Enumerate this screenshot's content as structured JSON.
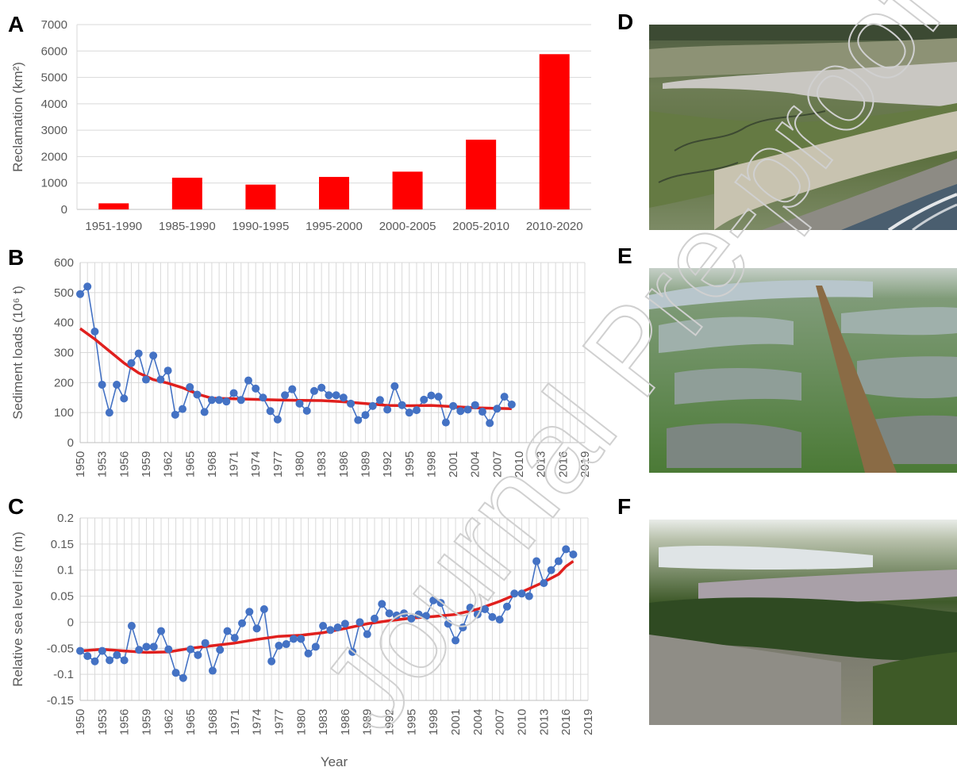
{
  "panels": {
    "A": "A",
    "B": "B",
    "C": "C",
    "D": "D",
    "E": "E",
    "F": "F"
  },
  "watermark": "Journal Pre-proof",
  "colors": {
    "bar": "#ff0000",
    "points": "#4472c4",
    "trend": "#e0201e"
  },
  "chart_data": [
    {
      "panel": "A",
      "type": "bar",
      "ylabel": "Reclamation (km²)",
      "categories": [
        "1951-1990",
        "1985-1990",
        "1990-1995",
        "1995-2000",
        "2000-2005",
        "2005-2010",
        "2010-2020"
      ],
      "values": [
        230,
        1200,
        940,
        1230,
        1430,
        2640,
        5880
      ],
      "ylim": [
        0,
        7000
      ],
      "yticks": [
        0,
        1000,
        2000,
        3000,
        4000,
        5000,
        6000,
        7000
      ],
      "grid": true
    },
    {
      "panel": "B",
      "type": "line",
      "ylabel": "Sediment loads (10⁶ t)",
      "ylim": [
        0,
        600
      ],
      "yticks": [
        0,
        100,
        200,
        300,
        400,
        500,
        600
      ],
      "xlim": [
        1950,
        2019
      ],
      "xticks": [
        "1950",
        "1953",
        "1956",
        "1959",
        "1962",
        "1965",
        "1968",
        "1971",
        "1974",
        "1977",
        "1980",
        "1983",
        "1986",
        "1989",
        "1992",
        "1995",
        "1998",
        "2001",
        "2004",
        "2007",
        "2010",
        "2013",
        "2016",
        "2019"
      ],
      "grid": true,
      "series": [
        {
          "kind": "points",
          "x": [
            1950,
            1951,
            1952,
            1953,
            1954,
            1955,
            1956,
            1957,
            1958,
            1959,
            1960,
            1961,
            1962,
            1963,
            1964,
            1965,
            1966,
            1967,
            1968,
            1969,
            1970,
            1971,
            1972,
            1973,
            1974,
            1975,
            1976,
            1977,
            1978,
            1979,
            1980,
            1981,
            1982,
            1983,
            1984,
            1985,
            1986,
            1987,
            1988,
            1989,
            1990,
            1991,
            1992,
            1993,
            1994,
            1995,
            1996,
            1997,
            1998,
            1999,
            2000,
            2001,
            2002,
            2003,
            2004,
            2005,
            2006,
            2007,
            2008,
            2009
          ],
          "values": [
            495,
            520,
            370,
            193,
            100,
            193,
            147,
            265,
            297,
            210,
            290,
            210,
            240,
            93,
            112,
            185,
            160,
            102,
            142,
            142,
            137,
            165,
            142,
            207,
            180,
            150,
            105,
            77,
            158,
            178,
            130,
            106,
            172,
            183,
            158,
            158,
            150,
            130,
            75,
            92,
            122,
            142,
            110,
            188,
            125,
            100,
            108,
            143,
            157,
            153,
            67,
            122,
            105,
            110,
            125,
            103,
            65,
            113,
            153,
            127
          ]
        },
        {
          "kind": "trend",
          "x": [
            1950,
            1952,
            1954,
            1956,
            1958,
            1960,
            1962,
            1964,
            1966,
            1968,
            1971,
            1974,
            1977,
            1980,
            1983,
            1986,
            1989,
            1992,
            1995,
            1998,
            2001,
            2004,
            2007,
            2009
          ],
          "values": [
            380,
            345,
            305,
            265,
            232,
            210,
            198,
            183,
            162,
            148,
            146,
            144,
            142,
            141,
            140,
            136,
            130,
            124,
            123,
            124,
            120,
            116,
            114,
            113
          ]
        }
      ]
    },
    {
      "panel": "C",
      "type": "line",
      "xlabel": "Year",
      "ylabel": "Relative sea level rise (m)",
      "ylim": [
        -0.15,
        0.2
      ],
      "yticks": [
        -0.15,
        -0.1,
        -0.05,
        0,
        0.05,
        0.1,
        0.15,
        0.2
      ],
      "ytick_labels": [
        "-0.15",
        "-0.1",
        "-0.05",
        "0",
        "0.05",
        "0.1",
        "0.15",
        "0.2"
      ],
      "xlim": [
        1950,
        2019
      ],
      "xticks": [
        "1950",
        "1953",
        "1956",
        "1959",
        "1962",
        "1965",
        "1968",
        "1971",
        "1974",
        "1977",
        "1980",
        "1983",
        "1986",
        "1989",
        "1992",
        "1995",
        "1998",
        "2001",
        "2004",
        "2007",
        "2010",
        "2013",
        "2016",
        "2019"
      ],
      "grid": true,
      "series": [
        {
          "kind": "points",
          "x": [
            1950,
            1951,
            1952,
            1953,
            1954,
            1955,
            1956,
            1957,
            1958,
            1959,
            1960,
            1961,
            1962,
            1963,
            1964,
            1965,
            1966,
            1967,
            1968,
            1969,
            1970,
            1971,
            1972,
            1973,
            1974,
            1975,
            1976,
            1977,
            1978,
            1979,
            1980,
            1981,
            1982,
            1983,
            1984,
            1985,
            1986,
            1987,
            1988,
            1989,
            1990,
            1991,
            1992,
            1993,
            1994,
            1995,
            1996,
            1997,
            1998,
            1999,
            2000,
            2001,
            2002,
            2003,
            2004,
            2005,
            2006,
            2007,
            2008,
            2009,
            2010,
            2011,
            2012,
            2013,
            2014,
            2015,
            2016,
            2017
          ],
          "values": [
            -0.055,
            -0.065,
            -0.075,
            -0.055,
            -0.073,
            -0.063,
            -0.073,
            -0.007,
            -0.053,
            -0.047,
            -0.047,
            -0.017,
            -0.052,
            -0.097,
            -0.107,
            -0.052,
            -0.063,
            -0.04,
            -0.093,
            -0.053,
            -0.017,
            -0.03,
            -0.002,
            0.02,
            -0.012,
            0.025,
            -0.075,
            -0.045,
            -0.042,
            -0.032,
            -0.032,
            -0.06,
            -0.047,
            -0.007,
            -0.015,
            -0.01,
            -0.003,
            -0.057,
            0.0,
            -0.023,
            0.007,
            0.035,
            0.017,
            0.013,
            0.017,
            0.007,
            0.015,
            0.012,
            0.042,
            0.037,
            -0.003,
            -0.035,
            -0.01,
            0.028,
            0.015,
            0.025,
            0.01,
            0.005,
            0.03,
            0.055,
            0.055,
            0.05,
            0.117,
            0.075,
            0.1,
            0.117,
            0.14,
            0.13
          ]
        },
        {
          "kind": "trend",
          "x": [
            1950,
            1953,
            1956,
            1959,
            1962,
            1965,
            1968,
            1971,
            1974,
            1977,
            1980,
            1983,
            1986,
            1989,
            1992,
            1995,
            1998,
            2001,
            2004,
            2007,
            2010,
            2013,
            2015,
            2016,
            2017
          ],
          "values": [
            -0.055,
            -0.052,
            -0.055,
            -0.058,
            -0.057,
            -0.05,
            -0.045,
            -0.04,
            -0.033,
            -0.027,
            -0.025,
            -0.02,
            -0.012,
            -0.003,
            0.003,
            0.008,
            0.011,
            0.015,
            0.025,
            0.04,
            0.058,
            0.077,
            0.092,
            0.107,
            0.117
          ]
        }
      ]
    }
  ]
}
